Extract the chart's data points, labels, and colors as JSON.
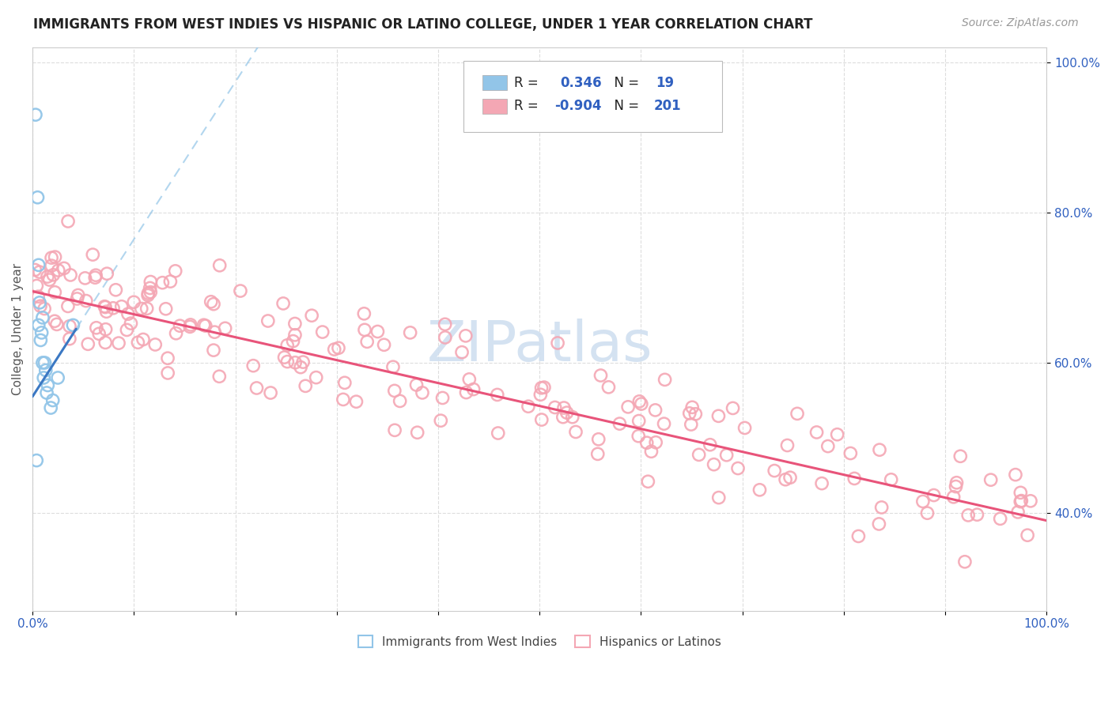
{
  "title": "IMMIGRANTS FROM WEST INDIES VS HISPANIC OR LATINO COLLEGE, UNDER 1 YEAR CORRELATION CHART",
  "source": "Source: ZipAtlas.com",
  "ylabel": "College, Under 1 year",
  "xlim": [
    0.0,
    1.0
  ],
  "ylim": [
    0.27,
    1.02
  ],
  "ytick_positions": [
    0.4,
    0.6,
    0.8,
    1.0
  ],
  "ytick_labels": [
    "40.0%",
    "60.0%",
    "80.0%",
    "100.0%"
  ],
  "blue_color": "#92C5E8",
  "pink_color": "#F4A7B4",
  "blue_line_color": "#3B78C3",
  "pink_line_color": "#E8547A",
  "blue_dashed_color": "#92C5E8",
  "watermark_color": "#D0DFF0",
  "legend_label1": "Immigrants from West Indies",
  "legend_label2": "Hispanics or Latinos",
  "grid_color": "#DDDDDD",
  "title_fontsize": 12,
  "source_fontsize": 10,
  "scatter_size": 120,
  "blue_r": "0.346",
  "blue_n": "19",
  "pink_r": "-0.904",
  "pink_n": "201",
  "blue_line_start_x": 0.0,
  "blue_line_start_y": 0.555,
  "blue_line_end_x": 0.043,
  "blue_line_end_y": 0.645,
  "pink_line_start_x": 0.0,
  "pink_line_start_y": 0.695,
  "pink_line_end_x": 1.0,
  "pink_line_end_y": 0.39
}
